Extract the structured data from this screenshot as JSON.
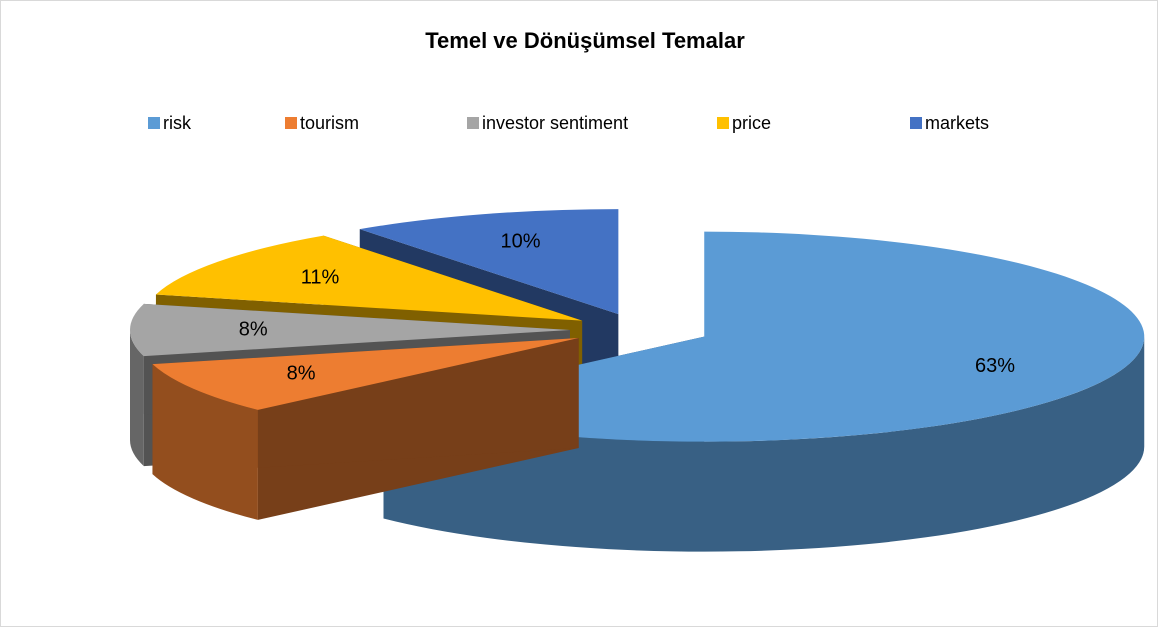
{
  "chart_data": {
    "type": "pie3d",
    "title": "Temel ve Dönüşümsel Temalar",
    "categories": [
      "risk",
      "tourism",
      "investor sentiment",
      "price",
      "markets"
    ],
    "values": [
      63,
      8,
      8,
      11,
      10
    ],
    "value_labels": [
      "63%",
      "8%",
      "8%",
      "11%",
      "10%"
    ],
    "colors": [
      "#5b9bd5",
      "#ed7d31",
      "#a5a5a5",
      "#ffc000",
      "#4472c4"
    ],
    "legend": "top"
  }
}
